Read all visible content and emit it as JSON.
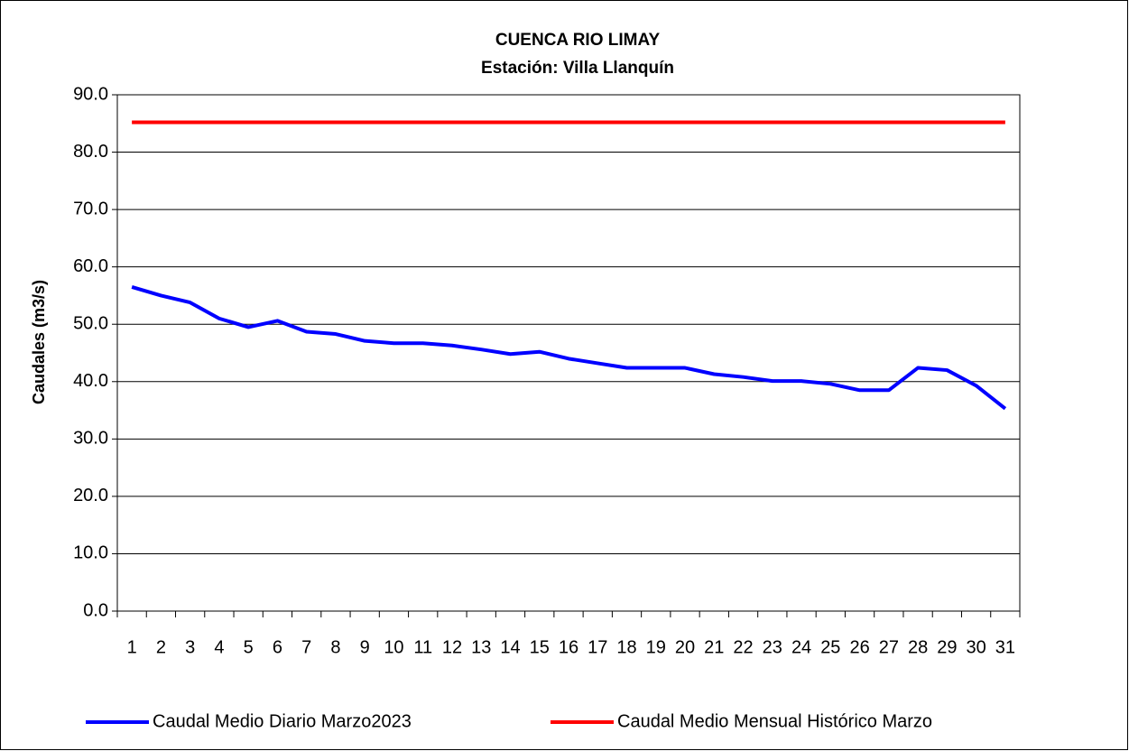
{
  "chart_data": {
    "type": "line",
    "title": "CUENCA RIO LIMAY",
    "subtitle": "Estación: Villa Llanquín",
    "y_label": "Caudales (m3/s)",
    "categories": [
      "1",
      "2",
      "3",
      "4",
      "5",
      "6",
      "7",
      "8",
      "9",
      "10",
      "11",
      "12",
      "13",
      "14",
      "15",
      "16",
      "17",
      "18",
      "19",
      "20",
      "21",
      "22",
      "23",
      "24",
      "25",
      "26",
      "27",
      "28",
      "29",
      "30",
      "31"
    ],
    "series": [
      {
        "name": "Caudal Medio Diario Marzo2023",
        "color": "#0000ff",
        "values": [
          56.5,
          55.0,
          53.8,
          51.0,
          49.5,
          50.6,
          48.7,
          48.3,
          47.1,
          46.7,
          46.7,
          46.3,
          45.6,
          44.8,
          45.2,
          44.0,
          43.2,
          42.4,
          42.4,
          42.4,
          41.3,
          40.8,
          40.1,
          40.1,
          39.6,
          38.5,
          38.5,
          42.4,
          42.0,
          39.3,
          35.3
        ]
      },
      {
        "name": "Caudal Medio Mensual Histórico Marzo",
        "color": "#ff0000",
        "values": [
          85.2,
          85.2,
          85.2,
          85.2,
          85.2,
          85.2,
          85.2,
          85.2,
          85.2,
          85.2,
          85.2,
          85.2,
          85.2,
          85.2,
          85.2,
          85.2,
          85.2,
          85.2,
          85.2,
          85.2,
          85.2,
          85.2,
          85.2,
          85.2,
          85.2,
          85.2,
          85.2,
          85.2,
          85.2,
          85.2,
          85.2
        ]
      }
    ],
    "ylim": [
      0,
      90
    ],
    "yticks": [
      {
        "value": 0,
        "label": "0.0"
      },
      {
        "value": 10,
        "label": "10.0"
      },
      {
        "value": 20,
        "label": "20.0"
      },
      {
        "value": 30,
        "label": "30.0"
      },
      {
        "value": 40,
        "label": "40.0"
      },
      {
        "value": 50,
        "label": "50.0"
      },
      {
        "value": 60,
        "label": "60.0"
      },
      {
        "value": 70,
        "label": "70.0"
      },
      {
        "value": 80,
        "label": "80.0"
      },
      {
        "value": 90,
        "label": "90.0"
      }
    ],
    "grid": true,
    "legend": "bottom"
  }
}
